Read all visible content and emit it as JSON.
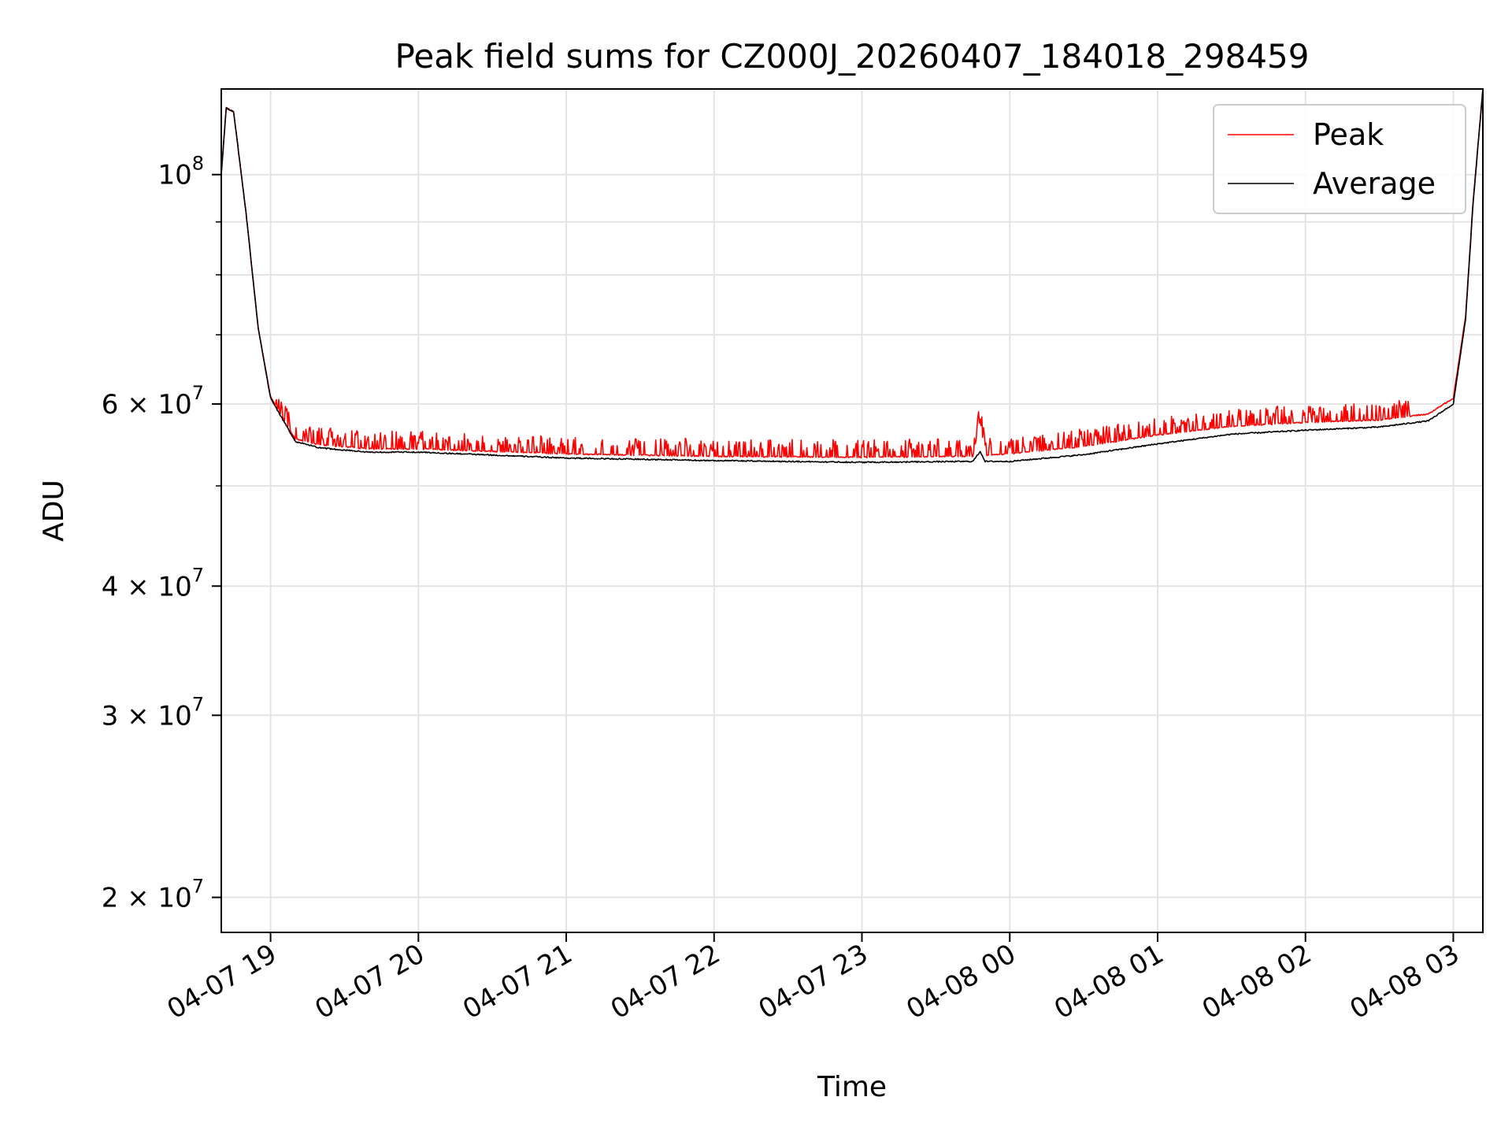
{
  "chart_data": {
    "type": "line",
    "title": "Peak field sums for CZ000J_20260407_184018_298459",
    "xlabel": "Time",
    "ylabel": "ADU",
    "x_axis": {
      "kind": "datetime",
      "range": [
        "2026-04-07 18:40",
        "2026-04-08 03:12"
      ],
      "ticks": [
        {
          "value": "2026-04-07 19:00",
          "label": "04-07 19"
        },
        {
          "value": "2026-04-07 20:00",
          "label": "04-07 20"
        },
        {
          "value": "2026-04-07 21:00",
          "label": "04-07 21"
        },
        {
          "value": "2026-04-07 22:00",
          "label": "04-07 22"
        },
        {
          "value": "2026-04-07 23:00",
          "label": "04-07 23"
        },
        {
          "value": "2026-04-08 00:00",
          "label": "04-08 00"
        },
        {
          "value": "2026-04-08 01:00",
          "label": "04-08 01"
        },
        {
          "value": "2026-04-08 02:00",
          "label": "04-08 02"
        },
        {
          "value": "2026-04-08 03:00",
          "label": "04-08 03"
        }
      ]
    },
    "y_axis": {
      "scale": "log",
      "range": [
        18500000,
        121000000
      ],
      "ticks": [
        {
          "value": 20000000,
          "mantissa": "2",
          "base": "10",
          "exp": "7"
        },
        {
          "value": 30000000,
          "mantissa": "3",
          "base": "10",
          "exp": "7"
        },
        {
          "value": 40000000,
          "mantissa": "4",
          "base": "10",
          "exp": "7"
        },
        {
          "value": 60000000,
          "mantissa": "6",
          "base": "10",
          "exp": "7"
        },
        {
          "value": 100000000,
          "mantissa": "",
          "base": "10",
          "exp": "8"
        }
      ],
      "minor_ticks": [
        50000000,
        70000000,
        80000000,
        90000000
      ]
    },
    "grid": true,
    "legend_position": "top-right",
    "series": [
      {
        "name": "Peak",
        "color": "#ff0000",
        "x": [
          "2026-04-07 18:40",
          "2026-04-07 18:42",
          "2026-04-07 18:45",
          "2026-04-07 18:50",
          "2026-04-07 18:55",
          "2026-04-07 19:00",
          "2026-04-07 19:10",
          "2026-04-07 19:20",
          "2026-04-07 19:40",
          "2026-04-07 20:00",
          "2026-04-07 21:00",
          "2026-04-07 22:00",
          "2026-04-07 23:00",
          "2026-04-07 23:45",
          "2026-04-07 23:48",
          "2026-04-07 23:50",
          "2026-04-08 00:00",
          "2026-04-08 00:30",
          "2026-04-08 01:00",
          "2026-04-08 01:30",
          "2026-04-08 02:00",
          "2026-04-08 02:30",
          "2026-04-08 02:50",
          "2026-04-08 03:00",
          "2026-04-08 03:05",
          "2026-04-08 03:08",
          "2026-04-08 03:12"
        ],
        "values": [
          100000000,
          116000000,
          115000000,
          92000000,
          71000000,
          61000000,
          55500000,
          54800000,
          54300000,
          54300000,
          53700000,
          53400000,
          53300000,
          53400000,
          58000000,
          53500000,
          53700000,
          54600000,
          56000000,
          57100000,
          57600000,
          57900000,
          58700000,
          60800000,
          73000000,
          94000000,
          121000000
        ]
      },
      {
        "name": "Average",
        "color": "#000000",
        "x": [
          "2026-04-07 18:40",
          "2026-04-07 18:42",
          "2026-04-07 18:45",
          "2026-04-07 18:50",
          "2026-04-07 18:55",
          "2026-04-07 19:00",
          "2026-04-07 19:10",
          "2026-04-07 19:20",
          "2026-04-07 19:40",
          "2026-04-07 20:00",
          "2026-04-07 21:00",
          "2026-04-07 22:00",
          "2026-04-07 23:00",
          "2026-04-07 23:45",
          "2026-04-07 23:48",
          "2026-04-07 23:50",
          "2026-04-08 00:00",
          "2026-04-08 00:30",
          "2026-04-08 01:00",
          "2026-04-08 01:30",
          "2026-04-08 02:00",
          "2026-04-08 02:30",
          "2026-04-08 02:50",
          "2026-04-08 03:00",
          "2026-04-08 03:05",
          "2026-04-08 03:08",
          "2026-04-08 03:12"
        ],
        "values": [
          100000000,
          116000000,
          115000000,
          92000000,
          71000000,
          60800000,
          55200000,
          54400000,
          53900000,
          53900000,
          53200000,
          52900000,
          52700000,
          52800000,
          54000000,
          52800000,
          52800000,
          53600000,
          54900000,
          56100000,
          56600000,
          57000000,
          57800000,
          60000000,
          72500000,
          93500000,
          121000000
        ]
      }
    ]
  }
}
